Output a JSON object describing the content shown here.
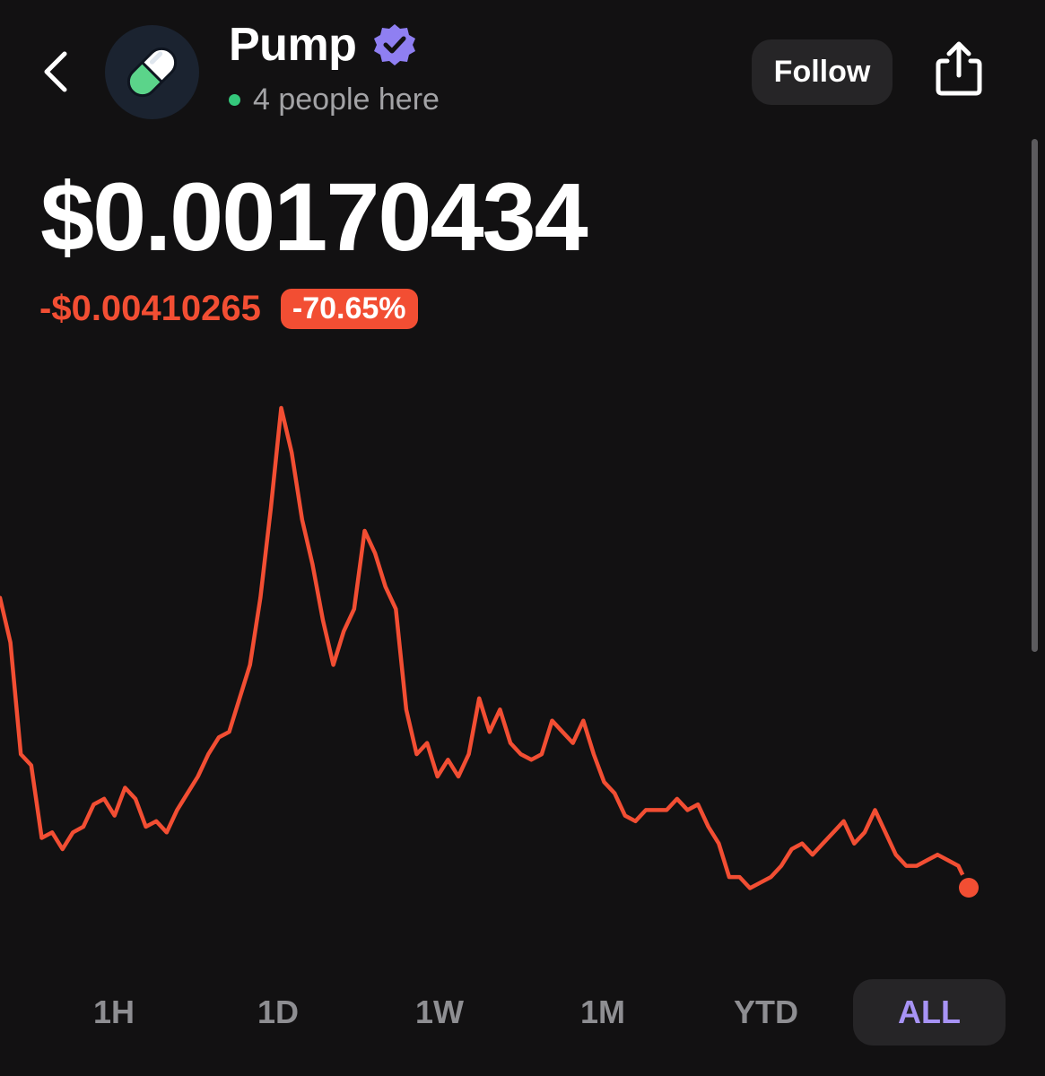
{
  "header": {
    "title": "Pump",
    "presence_text": "4 people here",
    "follow_label": "Follow",
    "avatar_icon": "pill-icon",
    "verified_icon": "verified-badge-icon",
    "back_icon": "chevron-left-icon",
    "share_icon": "share-icon"
  },
  "price": {
    "value": "$0.00170434",
    "change_abs": "-$0.00410265",
    "change_pct": "-70.65%"
  },
  "ranges": [
    "1H",
    "1D",
    "1W",
    "1M",
    "YTD",
    "ALL"
  ],
  "active_range": "ALL",
  "colors": {
    "background": "#121112",
    "negative": "#f24e33",
    "accent": "#a793f5",
    "presence": "#34c77b",
    "verified": "#8f7ff2",
    "pill_green": "#5bd48a"
  },
  "chart_data": {
    "type": "line",
    "x_label": "",
    "y_label": "",
    "series": [
      {
        "values": [
          0.0043,
          0.0039,
          0.0029,
          0.0028,
          0.00215,
          0.0022,
          0.00205,
          0.0022,
          0.00225,
          0.00245,
          0.0025,
          0.00235,
          0.0026,
          0.0025,
          0.00225,
          0.0023,
          0.0022,
          0.0024,
          0.00255,
          0.0027,
          0.0029,
          0.00305,
          0.0031,
          0.0034,
          0.0037,
          0.0043,
          0.0051,
          0.006,
          0.0056,
          0.005,
          0.0046,
          0.0041,
          0.0037,
          0.004,
          0.0042,
          0.0049,
          0.0047,
          0.0044,
          0.0042,
          0.0033,
          0.0029,
          0.003,
          0.0027,
          0.00285,
          0.0027,
          0.0029,
          0.0034,
          0.0031,
          0.0033,
          0.003,
          0.0029,
          0.00285,
          0.0029,
          0.0032,
          0.0031,
          0.003,
          0.0032,
          0.0029,
          0.00265,
          0.00255,
          0.00235,
          0.0023,
          0.0024,
          0.0024,
          0.0024,
          0.0025,
          0.0024,
          0.00245,
          0.00225,
          0.0021,
          0.0018,
          0.0018,
          0.0017,
          0.00175,
          0.0018,
          0.0019,
          0.00205,
          0.0021,
          0.002,
          0.0021,
          0.0022,
          0.0023,
          0.0021,
          0.0022,
          0.0024,
          0.0022,
          0.002,
          0.0019,
          0.0019,
          0.00195,
          0.002,
          0.00195,
          0.0019,
          0.00170434
        ],
        "color": "#f24e33"
      }
    ],
    "grid": false,
    "legend": "none"
  }
}
